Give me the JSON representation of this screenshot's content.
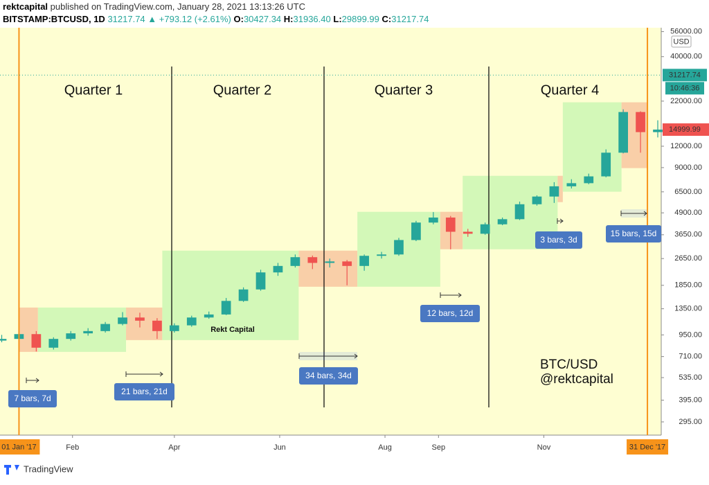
{
  "chart_data": {
    "type": "candlestick",
    "header": {
      "author": "rektcapital",
      "published": "published on TradingView.com, January 28, 2021 13:13:26 UTC",
      "symbol": "BITSTAMP:BTCUSD, 1D",
      "last": "31217.74",
      "change": "▲ +793.12 (+2.61%)",
      "ohlc": [
        {
          "label": "O:",
          "value": "30427.34"
        },
        {
          "label": "H:",
          "value": "31936.40"
        },
        {
          "label": "L:",
          "value": "29899.99"
        },
        {
          "label": "C:",
          "value": "31217.74"
        }
      ]
    },
    "currency": "USD",
    "last_price": 31217.74,
    "countdown": "10:46:36",
    "marked_price": 14999.99,
    "log_scale": true,
    "grid": false,
    "up_color": "#26a69a",
    "down_color": "#ef5350",
    "xlim": [
      -11,
      372
    ],
    "xticks": [
      {
        "value": 31,
        "label": "Feb"
      },
      {
        "value": 90,
        "label": "Apr"
      },
      {
        "value": 151,
        "label": "Jun"
      },
      {
        "value": 212,
        "label": "Aug"
      },
      {
        "value": 243,
        "label": "Sep"
      },
      {
        "value": 304,
        "label": "Nov"
      }
    ],
    "range": {
      "start": {
        "value": 0,
        "label": "01 Jan '17"
      },
      "end": {
        "value": 364,
        "label": "31 Dec '17"
      }
    },
    "ylim": [
      247,
      59000
    ],
    "yticks": [
      {
        "value": 295,
        "label": "295.00"
      },
      {
        "value": 395,
        "label": "395.00"
      },
      {
        "value": 535,
        "label": "535.00"
      },
      {
        "value": 710,
        "label": "710.00"
      },
      {
        "value": 950,
        "label": "950.00"
      },
      {
        "value": 1350,
        "label": "1350.00"
      },
      {
        "value": 1850,
        "label": "1850.00"
      },
      {
        "value": 2650,
        "label": "2650.00"
      },
      {
        "value": 3650,
        "label": "3650.00"
      },
      {
        "value": 4900,
        "label": "4900.00"
      },
      {
        "value": 6500,
        "label": "6500.00"
      },
      {
        "value": 9000,
        "label": "9000.00"
      },
      {
        "value": 12000,
        "label": "12000.00"
      },
      {
        "value": 22000,
        "label": "22000.00"
      },
      {
        "value": 40000,
        "label": "40000.00"
      },
      {
        "value": 56000,
        "label": "56000.00"
      }
    ],
    "candles": {
      "x": [
        -10,
        0,
        10,
        20,
        30,
        40,
        50,
        60,
        70,
        80,
        90,
        100,
        110,
        120,
        130,
        140,
        150,
        160,
        170,
        180,
        190,
        200,
        210,
        220,
        230,
        240,
        250,
        260,
        270,
        280,
        290,
        300,
        310,
        320,
        330,
        340,
        350,
        360,
        370
      ],
      "open": [
        880,
        900,
        960,
        800,
        900,
        970,
        1000,
        1100,
        1200,
        1150,
        1000,
        1080,
        1200,
        1250,
        1500,
        1750,
        2200,
        2400,
        2700,
        2500,
        2550,
        2400,
        2750,
        2800,
        3400,
        4300,
        4600,
        3800,
        3700,
        4200,
        4500,
        5500,
        6100,
        7000,
        7300,
        8000,
        11000,
        19000,
        14500
      ],
      "high": [
        950,
        1130,
        1000,
        920,
        1000,
        1040,
        1130,
        1290,
        1280,
        1190,
        1110,
        1230,
        1300,
        1560,
        1800,
        2280,
        2500,
        2800,
        2760,
        2650,
        2600,
        2800,
        2900,
        3500,
        4400,
        4950,
        4700,
        3950,
        4300,
        4600,
        5700,
        6200,
        7400,
        7700,
        8300,
        11500,
        19700,
        19200,
        17000
      ],
      "low": [
        860,
        880,
        760,
        780,
        880,
        940,
        980,
        1080,
        1050,
        900,
        980,
        1060,
        1180,
        1240,
        1480,
        1720,
        2100,
        2350,
        2300,
        2350,
        1850,
        2250,
        2650,
        2750,
        3350,
        4200,
        3000,
        3550,
        3650,
        4150,
        4450,
        5400,
        5600,
        6800,
        7200,
        7900,
        10900,
        11000,
        13500
      ],
      "close": [
        900,
        960,
        800,
        900,
        970,
        1000,
        1100,
        1200,
        1150,
        1000,
        1080,
        1200,
        1250,
        1500,
        1750,
        2200,
        2400,
        2700,
        2500,
        2550,
        2400,
        2750,
        2800,
        3400,
        4300,
        4600,
        3800,
        3700,
        4200,
        4500,
        5500,
        6100,
        7000,
        7300,
        8000,
        11000,
        19000,
        14500,
        15000
      ]
    },
    "zones": [
      {
        "x": [
          0,
          11
        ],
        "y": [
          756,
          1372
        ],
        "color": "#f9cfa8"
      },
      {
        "x": [
          11,
          62
        ],
        "y": [
          756,
          1372
        ],
        "color": "#d3f8b8"
      },
      {
        "x": [
          62,
          83
        ],
        "y": [
          886,
          1372
        ],
        "color": "#f9cfa8"
      },
      {
        "x": [
          83,
          162
        ],
        "y": [
          886,
          2948
        ],
        "color": "#d3f8b8"
      },
      {
        "x": [
          162,
          196
        ],
        "y": [
          1815,
          2948
        ],
        "color": "#f9cfa8"
      },
      {
        "x": [
          196,
          244
        ],
        "y": [
          1815,
          4968
        ],
        "color": "#d3f8b8"
      },
      {
        "x": [
          244,
          257
        ],
        "y": [
          3004,
          4968
        ],
        "color": "#f9cfa8"
      },
      {
        "x": [
          257,
          312
        ],
        "y": [
          3004,
          8060
        ],
        "color": "#d3f8b8"
      },
      {
        "x": [
          312,
          315
        ],
        "y": [
          5660,
          8060
        ],
        "color": "#f9cfa8"
      },
      {
        "x": [
          315,
          349
        ],
        "y": [
          6510,
          21650
        ],
        "color": "#d3f8b8"
      },
      {
        "x": [
          349,
          364
        ],
        "y": [
          8940,
          21650
        ],
        "color": "#f9cfa8"
      }
    ],
    "quarters": [
      "Quarter 1",
      "Quarter 2",
      "Quarter 3",
      "Quarter 4"
    ],
    "measures": [
      "7 bars, 7d",
      "21 bars, 21d",
      "34 bars, 34d",
      "12 bars, 12d",
      "3 bars, 3d",
      "15 bars, 15d"
    ],
    "watermark": "Rekt Capital",
    "caption": [
      "BTC/USD",
      "@rektcapital"
    ],
    "footer": "TradingView"
  }
}
